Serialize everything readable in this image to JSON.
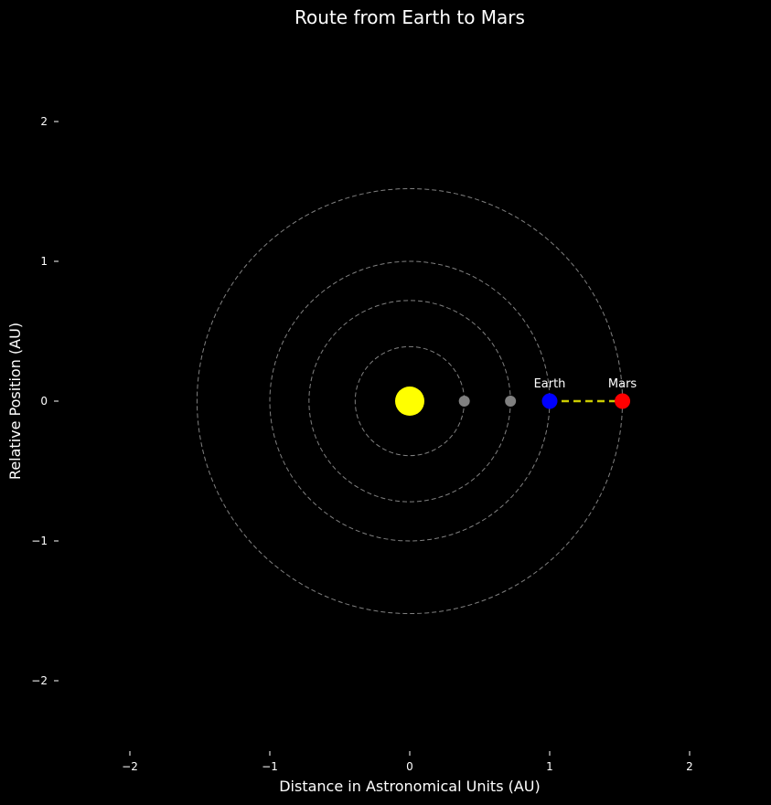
{
  "chart_data": {
    "type": "scatter",
    "title": "Route from Earth to Mars",
    "xlabel": "Distance in Astronomical Units (AU)",
    "ylabel": "Relative Position (AU)",
    "xlim": [
      -2.5,
      2.6
    ],
    "ylim": [
      -2.5,
      2.6
    ],
    "x_ticks": [
      -2,
      -1,
      0,
      1,
      2
    ],
    "x_tick_labels": [
      "−2",
      "−1",
      "0",
      "1",
      "2"
    ],
    "y_ticks": [
      -2,
      -1,
      0,
      1,
      2
    ],
    "y_tick_labels": [
      "−2",
      "−1",
      "0",
      "1",
      "2"
    ],
    "grid": false,
    "background_color": "#000000",
    "orbits": [
      {
        "radius": 0.39,
        "color": "#808080",
        "style": "dashed"
      },
      {
        "radius": 0.72,
        "color": "#808080",
        "style": "dashed"
      },
      {
        "radius": 1.0,
        "color": "#808080",
        "style": "dashed"
      },
      {
        "radius": 1.52,
        "color": "#808080",
        "style": "dashed"
      }
    ],
    "bodies": [
      {
        "x": 0,
        "y": 0,
        "color": "#ffff00",
        "label": ""
      },
      {
        "x": 0.39,
        "y": 0,
        "color": "#808080",
        "label": ""
      },
      {
        "x": 0.72,
        "y": 0,
        "color": "#808080",
        "label": ""
      },
      {
        "x": 1.0,
        "y": 0,
        "color": "#0000ff",
        "label": "Earth"
      },
      {
        "x": 1.52,
        "y": 0,
        "color": "#ff0000",
        "label": "Mars"
      }
    ],
    "route": {
      "from": [
        1.0,
        0
      ],
      "to": [
        1.52,
        0
      ],
      "color": "#cccc00",
      "style": "dashed"
    }
  }
}
